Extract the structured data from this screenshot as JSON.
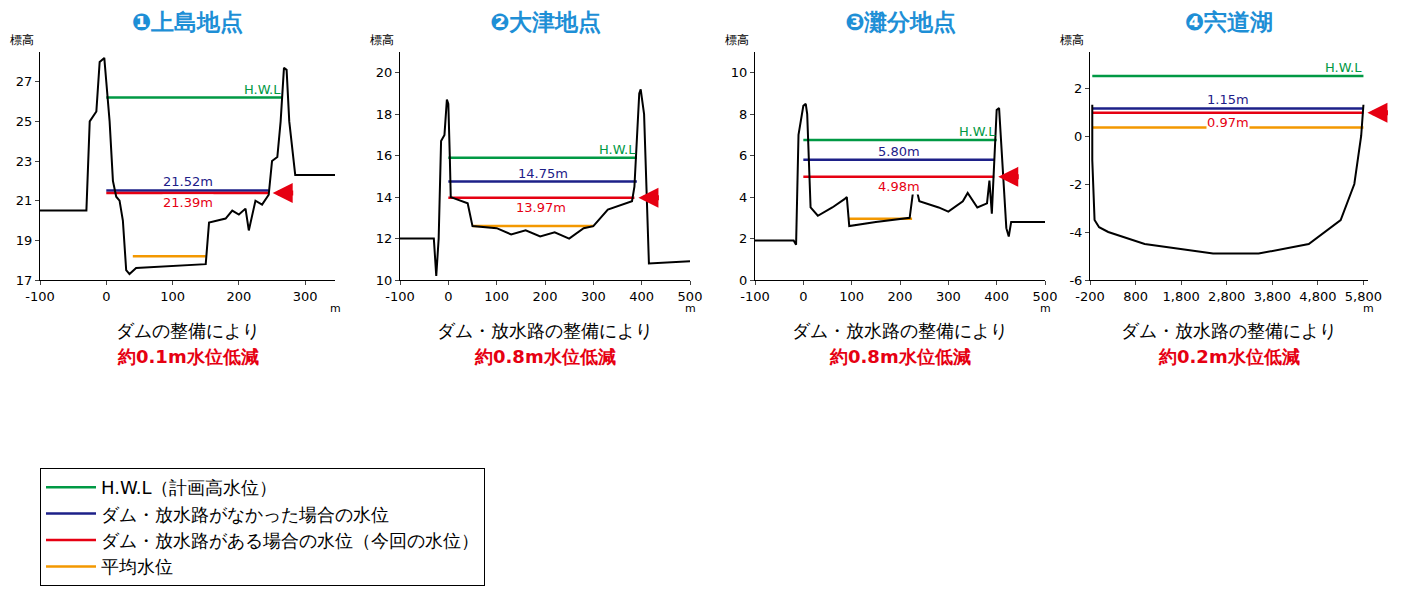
{
  "chart_data": [
    {
      "type": "line",
      "title": "❶上島地点",
      "subtitle": "ダムの整備により",
      "annotation": "約0.1m水位低減",
      "x_label": "m",
      "y_label": "標高",
      "grid": false,
      "legend": "bottom left",
      "xlim": [
        -100,
        345
      ],
      "xticks": [
        -100,
        0,
        100,
        200,
        300
      ],
      "ylim": [
        17,
        28.5
      ],
      "yticks": [
        17,
        19,
        21,
        23,
        25,
        27
      ],
      "series": [
        {
          "name": "H.W.L（計画高水位）",
          "color": "#009944",
          "x": [
            0,
            265
          ],
          "values": [
            26.2,
            26.2
          ],
          "label": "H.W.L"
        },
        {
          "name": "ダム・放水路がなかった場合の水位",
          "color": "#1d2088",
          "x": [
            0,
            245
          ],
          "values": [
            21.52,
            21.52
          ],
          "label": "21.52m"
        },
        {
          "name": "ダム・放水路がある場合の水位（今回の水位）",
          "color": "#e60012",
          "x": [
            0,
            245
          ],
          "values": [
            21.39,
            21.39
          ],
          "label": "21.39m"
        },
        {
          "name": "平均水位",
          "color": "#f39800",
          "x": [
            40,
            150
          ],
          "values": [
            18.2,
            18.2
          ]
        },
        {
          "color": "#000000",
          "x": [
            -100,
            -30,
            -25,
            -15,
            -10,
            -3,
            0,
            5,
            10,
            15,
            20,
            25,
            30,
            35,
            45,
            100,
            150,
            155,
            180,
            190,
            200,
            210,
            215,
            225,
            235,
            245,
            250,
            258,
            263,
            268,
            272,
            276,
            285,
            345
          ],
          "values": [
            20.5,
            20.5,
            25,
            25.5,
            28,
            28.2,
            27,
            25,
            22,
            21.2,
            21,
            20,
            17.5,
            17.3,
            17.6,
            17.7,
            17.8,
            19.9,
            20.1,
            20.5,
            20.3,
            20.6,
            19.5,
            21,
            20.8,
            21.3,
            23,
            23.2,
            25,
            27.7,
            27.6,
            25,
            22.3,
            22.3
          ]
        }
      ]
    },
    {
      "type": "line",
      "title": "❷大津地点",
      "subtitle": "ダム・放水路の整備により",
      "annotation": "約0.8m水位低減",
      "x_label": "m",
      "y_label": "標高",
      "grid": false,
      "xlim": [
        -100,
        500
      ],
      "xticks": [
        -100,
        0,
        100,
        200,
        300,
        400,
        500
      ],
      "ylim": [
        10,
        21
      ],
      "yticks": [
        10,
        12,
        14,
        16,
        18,
        20
      ],
      "series": [
        {
          "name": "H.W.L（計画高水位）",
          "color": "#009944",
          "x": [
            0,
            390
          ],
          "values": [
            15.9,
            15.9
          ],
          "label": "H.W.L"
        },
        {
          "name": "ダム・放水路がなかった場合の水位",
          "color": "#1d2088",
          "x": [
            0,
            390
          ],
          "values": [
            14.75,
            14.75
          ],
          "label": "14.75m"
        },
        {
          "name": "ダム・放水路がある場合の水位（今回の水位）",
          "color": "#e60012",
          "x": [
            0,
            385
          ],
          "values": [
            13.97,
            13.97
          ],
          "label": "13.97m"
        },
        {
          "name": "平均水位",
          "color": "#f39800",
          "x": [
            50,
            300
          ],
          "values": [
            12.6,
            12.6
          ]
        },
        {
          "color": "#000000",
          "x": [
            -100,
            -30,
            -25,
            -20,
            -15,
            -8,
            -3,
            0,
            3,
            5,
            40,
            50,
            100,
            130,
            160,
            190,
            220,
            250,
            280,
            300,
            330,
            380,
            385,
            395,
            398,
            405,
            415,
            500
          ],
          "values": [
            12,
            12,
            10.2,
            12,
            16.7,
            17,
            18.7,
            18.5,
            16,
            14,
            13.7,
            12.6,
            12.5,
            12.2,
            12.4,
            12.1,
            12.3,
            12,
            12.5,
            12.6,
            13.4,
            13.8,
            14.5,
            19,
            19.2,
            18,
            10.8,
            10.9
          ]
        }
      ]
    },
    {
      "type": "line",
      "title": "❸灘分地点",
      "subtitle": "ダム・放水路の整備により",
      "annotation": "約0.8m水位低減",
      "x_label": "m",
      "y_label": "標高",
      "grid": false,
      "xlim": [
        -100,
        500
      ],
      "xticks": [
        -100,
        0,
        100,
        200,
        300,
        400,
        500
      ],
      "ylim": [
        0,
        11
      ],
      "yticks": [
        0,
        2,
        4,
        6,
        8,
        10
      ],
      "series": [
        {
          "name": "H.W.L（計画高水位）",
          "color": "#009944",
          "x": [
            0,
            400
          ],
          "values": [
            6.75,
            6.75
          ],
          "label": "H.W.L"
        },
        {
          "name": "ダム・放水路がなかった場合の水位",
          "color": "#1d2088",
          "x": [
            0,
            395
          ],
          "values": [
            5.8,
            5.8
          ],
          "label": "5.80m"
        },
        {
          "name": "ダム・放水路がある場合の水位（今回の水位）",
          "color": "#e60012",
          "x": [
            0,
            395
          ],
          "values": [
            4.98,
            4.98
          ],
          "label": "4.98m"
        },
        {
          "name": "平均水位",
          "color": "#f39800",
          "x": [
            95,
            225
          ],
          "values": [
            2.95,
            2.95
          ]
        },
        {
          "color": "#000000",
          "x": [
            -100,
            -20,
            -15,
            -10,
            0,
            5,
            8,
            15,
            30,
            60,
            85,
            90,
            95,
            150,
            220,
            230,
            240,
            280,
            300,
            330,
            340,
            360,
            380,
            385,
            390,
            395,
            400,
            405,
            420,
            425,
            430,
            500
          ],
          "values": [
            1.9,
            1.9,
            1.7,
            7,
            8.4,
            8.5,
            8,
            3.5,
            3.1,
            3.5,
            3.9,
            4,
            2.6,
            2.8,
            3,
            4.8,
            3.8,
            3.5,
            3.3,
            3.8,
            4.2,
            3.5,
            3.7,
            4.8,
            3.2,
            6,
            8.2,
            8.3,
            2.5,
            2.1,
            2.8,
            2.8
          ]
        }
      ]
    },
    {
      "type": "line",
      "title": "❹宍道湖",
      "subtitle": "ダム・放水路の整備により",
      "annotation": "約0.2m水位低減",
      "x_label": "m",
      "y_label": "標高",
      "grid": false,
      "xlim": [
        -200,
        5900
      ],
      "xticks": [
        -200,
        800,
        {
          "value": 1800,
          "label": "1,800"
        },
        {
          "value": 2800,
          "label": "2,800"
        },
        {
          "value": 3800,
          "label": "3,800"
        },
        {
          "value": 4800,
          "label": "4,800"
        },
        {
          "value": 5800,
          "label": "5,800"
        }
      ],
      "ylim": [
        -6,
        3.5
      ],
      "yticks": [
        -6,
        -4,
        -2,
        0,
        2
      ],
      "series": [
        {
          "name": "H.W.L（計画高水位）",
          "color": "#009944",
          "x": [
            -150,
            5800
          ],
          "values": [
            2.5,
            2.5
          ],
          "label": "H.W.L"
        },
        {
          "name": "ダム・放水路がなかった場合の水位",
          "color": "#1d2088",
          "x": [
            -150,
            5800
          ],
          "values": [
            1.15,
            1.15
          ],
          "label": "1.15m"
        },
        {
          "name": "ダム・放水路がある場合の水位（今回の水位）",
          "color": "#e60012",
          "x": [
            -150,
            5800
          ],
          "values": [
            0.97,
            0.97
          ],
          "label": "0.97m"
        },
        {
          "name": "平均水位",
          "color": "#f39800",
          "x": [
            -150,
            5800
          ],
          "values": [
            0.35,
            0.35
          ]
        },
        {
          "color": "#000000",
          "x": [
            -150,
            -150,
            -100,
            0,
            200,
            1000,
            2500,
            3500,
            4600,
            5300,
            5600,
            5750,
            5800
          ],
          "values": [
            1.3,
            -1,
            -3.5,
            -3.8,
            -4,
            -4.5,
            -4.9,
            -4.9,
            -4.5,
            -3.5,
            -2,
            0,
            1.3
          ]
        }
      ]
    }
  ]
}
